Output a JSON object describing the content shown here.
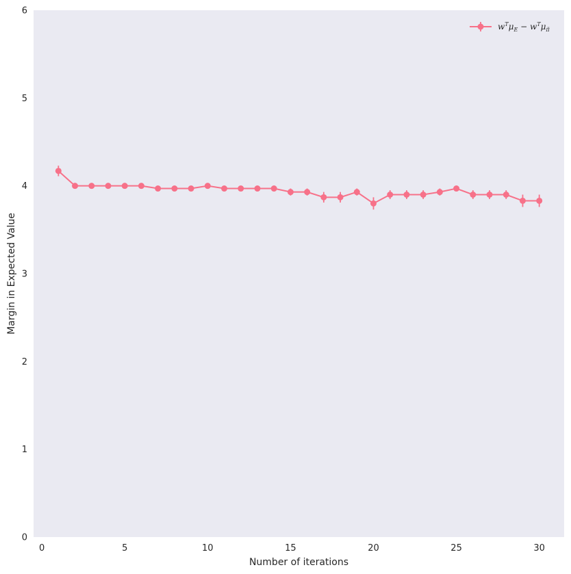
{
  "chart_data": {
    "type": "line",
    "xlabel": "Number of iterations",
    "ylabel": "Margin in Expected Value",
    "xlim": [
      -0.5,
      31.5
    ],
    "ylim": [
      0,
      6
    ],
    "xticks": [
      0,
      5,
      10,
      15,
      20,
      25,
      30
    ],
    "yticks": [
      0,
      1,
      2,
      3,
      4,
      5,
      6
    ],
    "xtick_labels": [
      "0",
      "5",
      "10",
      "15",
      "20",
      "25",
      "30"
    ],
    "ytick_labels": [
      "0",
      "1",
      "2",
      "3",
      "4",
      "5",
      "6"
    ],
    "grid": false,
    "legend_position": "top-right",
    "background_color": "#EAEAF2",
    "series": [
      {
        "name": "w^T μ_E − w^T μ_π̃",
        "color": "#F77189",
        "marker": "circle",
        "error_bars": true,
        "x": [
          1,
          2,
          3,
          4,
          5,
          6,
          7,
          8,
          9,
          10,
          11,
          12,
          13,
          14,
          15,
          16,
          17,
          18,
          19,
          20,
          21,
          22,
          23,
          24,
          25,
          26,
          27,
          28,
          29,
          30
        ],
        "y": [
          4.17,
          4.0,
          4.0,
          4.0,
          4.0,
          4.0,
          3.97,
          3.97,
          3.97,
          4.0,
          3.97,
          3.97,
          3.97,
          3.97,
          3.93,
          3.93,
          3.87,
          3.87,
          3.93,
          3.8,
          3.9,
          3.9,
          3.9,
          3.93,
          3.97,
          3.9,
          3.9,
          3.9,
          3.83,
          3.83
        ],
        "err": [
          0.06,
          0.02,
          0.02,
          0.02,
          0.02,
          0.02,
          0.03,
          0.03,
          0.03,
          0.02,
          0.03,
          0.03,
          0.03,
          0.03,
          0.04,
          0.04,
          0.06,
          0.06,
          0.04,
          0.07,
          0.05,
          0.05,
          0.05,
          0.04,
          0.03,
          0.05,
          0.05,
          0.05,
          0.07,
          0.07
        ]
      }
    ]
  }
}
